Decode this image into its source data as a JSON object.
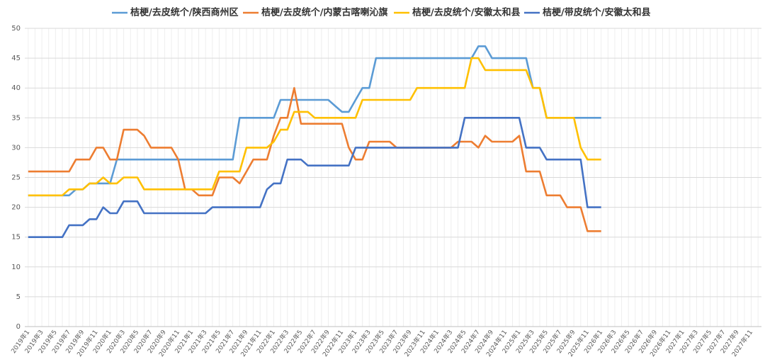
{
  "chart_data": {
    "type": "line",
    "categories": [
      "2019年1",
      null,
      "2019年3",
      null,
      "2019年5",
      null,
      "2019年7",
      null,
      "2019年9",
      null,
      "2019年11",
      null,
      "2020年1",
      null,
      "2020年3",
      null,
      "2020年5",
      null,
      "2020年7",
      null,
      "2020年9",
      null,
      "2020年11",
      null,
      "2021年1",
      null,
      "2021年3",
      null,
      "2021年5",
      null,
      "2021年7",
      null,
      "2021年9",
      null,
      "2021年11",
      null,
      "2022年1",
      null,
      "2022年3",
      null,
      "2022年5",
      null,
      "2022年7",
      null,
      "2022年9",
      null,
      "2022年11",
      null,
      "2023年1",
      null,
      "2023年3",
      null,
      "2023年5",
      null,
      "2023年7",
      null,
      "2023年9",
      null,
      "2023年11",
      null,
      "2024年1",
      null,
      "2024年3",
      null,
      "2024年5",
      null,
      "2024年7",
      null,
      "2024年9",
      null,
      "2024年11",
      null,
      "2025年1",
      null,
      "2025年3",
      null,
      "2025年5",
      null,
      "2025年7",
      null,
      "2025年9",
      null,
      "2025年11",
      null,
      "2026年1",
      null,
      "2026年3",
      null,
      "2026年5",
      null,
      "2026年7",
      null,
      "2026年9",
      null,
      "2026年11",
      null,
      "2027年1",
      null,
      "2027年3",
      null,
      "2027年5",
      null,
      "2027年7",
      null,
      "2027年9",
      null,
      "2027年11",
      null
    ],
    "series": [
      {
        "name": "桔梗/去皮统个/陕西商州区",
        "color": "#5b9bd5",
        "values": [
          22,
          22,
          22,
          22,
          22,
          22,
          22,
          23,
          23,
          24,
          24,
          24,
          24,
          28,
          28,
          28,
          28,
          28,
          28,
          28,
          28,
          28,
          28,
          28,
          28,
          28,
          28,
          28,
          28,
          28,
          28,
          35,
          35,
          35,
          35,
          35,
          35,
          38,
          38,
          38,
          38,
          38,
          38,
          38,
          38,
          37,
          36,
          36,
          38,
          40,
          40,
          45,
          45,
          45,
          45,
          45,
          45,
          45,
          45,
          45,
          45,
          45,
          45,
          45,
          45,
          45,
          47,
          47,
          45,
          45,
          45,
          45,
          45,
          45,
          40,
          40,
          35,
          35,
          35,
          35,
          35,
          35,
          35,
          35,
          35,
          null,
          null,
          null,
          null,
          null,
          null,
          null,
          null,
          null,
          null,
          null,
          null,
          null,
          null,
          null,
          null,
          null,
          null,
          null,
          null,
          null,
          null,
          null
        ]
      },
      {
        "name": "桔梗/去皮统个/内蒙古喀喇沁旗",
        "color": "#ed7d31",
        "values": [
          26,
          26,
          26,
          26,
          26,
          26,
          26,
          28,
          28,
          28,
          30,
          30,
          28,
          28,
          33,
          33,
          33,
          32,
          30,
          30,
          30,
          30,
          28,
          23,
          23,
          22,
          22,
          22,
          25,
          25,
          25,
          24,
          26,
          28,
          28,
          28,
          32,
          35,
          35,
          40,
          34,
          34,
          34,
          34,
          34,
          34,
          34,
          30,
          28,
          28,
          31,
          31,
          31,
          31,
          30,
          30,
          30,
          30,
          30,
          30,
          30,
          30,
          30,
          31,
          31,
          31,
          30,
          32,
          31,
          31,
          31,
          31,
          32,
          26,
          26,
          26,
          22,
          22,
          22,
          20,
          20,
          20,
          16,
          16,
          16,
          null,
          null,
          null,
          null,
          null,
          null,
          null,
          null,
          null,
          null,
          null,
          null,
          null,
          null,
          null,
          null,
          null,
          null,
          null,
          null,
          null,
          null,
          null
        ]
      },
      {
        "name": "桔梗/去皮统个/安徽太和县",
        "color": "#ffc000",
        "values": [
          22,
          22,
          22,
          22,
          22,
          22,
          23,
          23,
          23,
          24,
          24,
          25,
          24,
          24,
          25,
          25,
          25,
          23,
          23,
          23,
          23,
          23,
          23,
          23,
          23,
          23,
          23,
          23,
          26,
          26,
          26,
          26,
          30,
          30,
          30,
          30,
          31,
          33,
          33,
          36,
          36,
          36,
          35,
          35,
          35,
          35,
          35,
          35,
          35,
          38,
          38,
          38,
          38,
          38,
          38,
          38,
          38,
          40,
          40,
          40,
          40,
          40,
          40,
          40,
          40,
          45,
          45,
          43,
          43,
          43,
          43,
          43,
          43,
          43,
          40,
          40,
          35,
          35,
          35,
          35,
          35,
          30,
          28,
          28,
          28,
          null,
          null,
          null,
          null,
          null,
          null,
          null,
          null,
          null,
          null,
          null,
          null,
          null,
          null,
          null,
          null,
          null,
          null,
          null,
          null,
          null,
          null,
          null
        ]
      },
      {
        "name": "桔梗/带皮统个/安徽太和县",
        "color": "#4472c4",
        "values": [
          15,
          15,
          15,
          15,
          15,
          15,
          17,
          17,
          17,
          18,
          18,
          20,
          19,
          19,
          21,
          21,
          21,
          19,
          19,
          19,
          19,
          19,
          19,
          19,
          19,
          19,
          19,
          20,
          20,
          20,
          20,
          20,
          20,
          20,
          20,
          23,
          24,
          24,
          28,
          28,
          28,
          27,
          27,
          27,
          27,
          27,
          27,
          27,
          30,
          30,
          30,
          30,
          30,
          30,
          30,
          30,
          30,
          30,
          30,
          30,
          30,
          30,
          30,
          30,
          35,
          35,
          35,
          35,
          35,
          35,
          35,
          35,
          35,
          30,
          30,
          30,
          28,
          28,
          28,
          28,
          28,
          28,
          20,
          20,
          20,
          null,
          null,
          null,
          null,
          null,
          null,
          null,
          null,
          null,
          null,
          null,
          null,
          null,
          null,
          null,
          null,
          null,
          null,
          null,
          null,
          null,
          null,
          null
        ]
      }
    ],
    "ylim": [
      0,
      50
    ],
    "yticks": [
      0,
      5,
      10,
      15,
      20,
      25,
      30,
      35,
      40,
      45,
      50
    ],
    "grid": true,
    "legend": "top"
  }
}
